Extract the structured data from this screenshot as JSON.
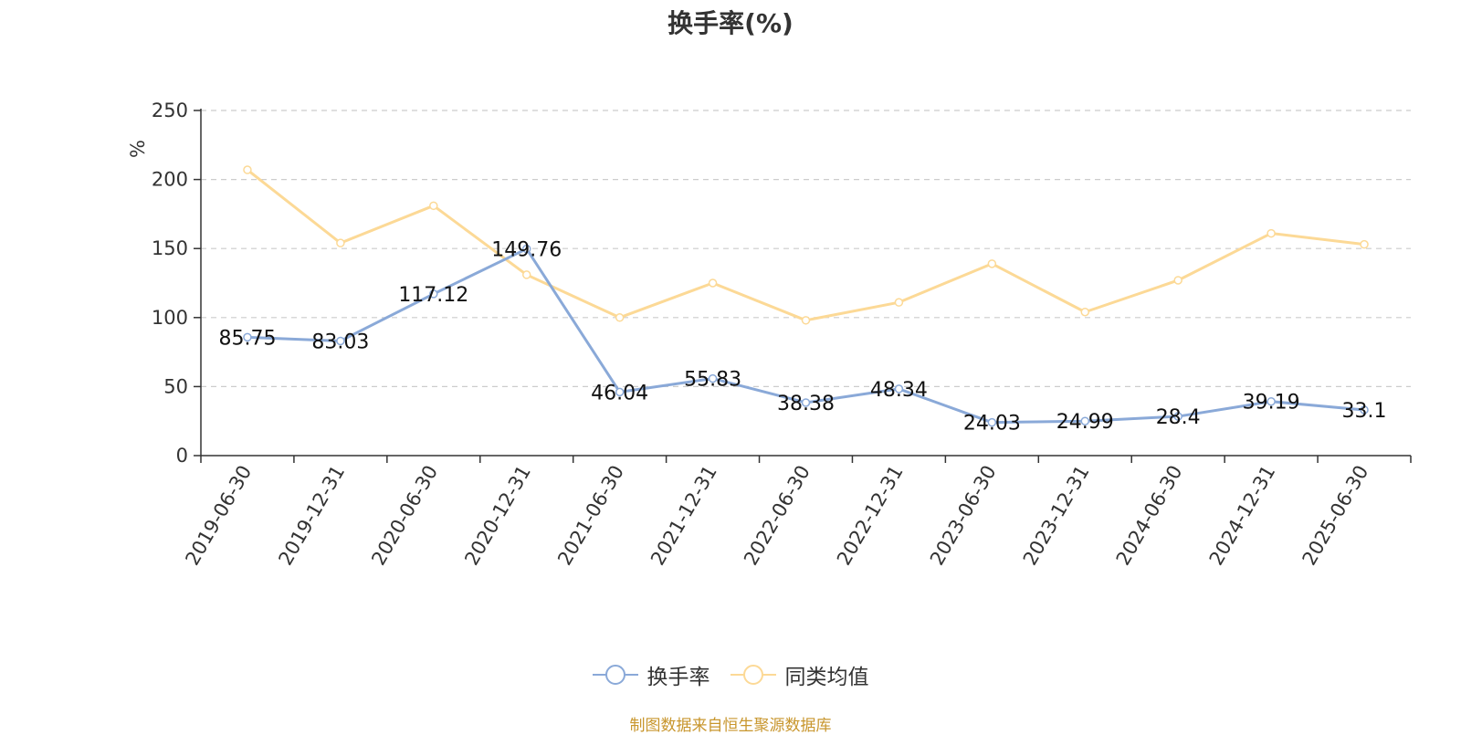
{
  "chart_data": {
    "type": "line",
    "title": "换手率(%)",
    "ylabel": "%",
    "xlabel": "",
    "categories": [
      "2019-06-30",
      "2019-12-31",
      "2020-06-30",
      "2020-12-31",
      "2021-06-30",
      "2021-12-31",
      "2022-06-30",
      "2022-12-31",
      "2023-06-30",
      "2023-12-31",
      "2024-06-30",
      "2024-12-31",
      "2025-06-30"
    ],
    "series": [
      {
        "name": "换手率",
        "color": "#8aa9d8",
        "values": [
          85.75,
          83.03,
          117.12,
          149.76,
          46.04,
          55.83,
          38.38,
          48.34,
          24.03,
          24.99,
          28.4,
          39.19,
          33.1
        ],
        "labels": [
          "85.75",
          "83.03",
          "117.12",
          "149.76",
          "46.04",
          "55.83",
          "38.38",
          "48.34",
          "24.03",
          "24.99",
          "28.4",
          "39.19",
          "33.1"
        ]
      },
      {
        "name": "同类均值",
        "color": "#fcd996",
        "values": [
          207,
          154,
          181,
          131,
          100,
          125,
          98,
          111,
          139,
          104,
          127,
          161,
          153
        ]
      }
    ],
    "ylim": [
      0,
      250
    ],
    "yticks": [
      "0",
      "50",
      "100",
      "150",
      "200",
      "250"
    ],
    "grid": true,
    "legend_position": "bottom",
    "ylabel_color": "#e02020"
  },
  "footer": {
    "source": "制图数据来自恒生聚源数据库"
  }
}
